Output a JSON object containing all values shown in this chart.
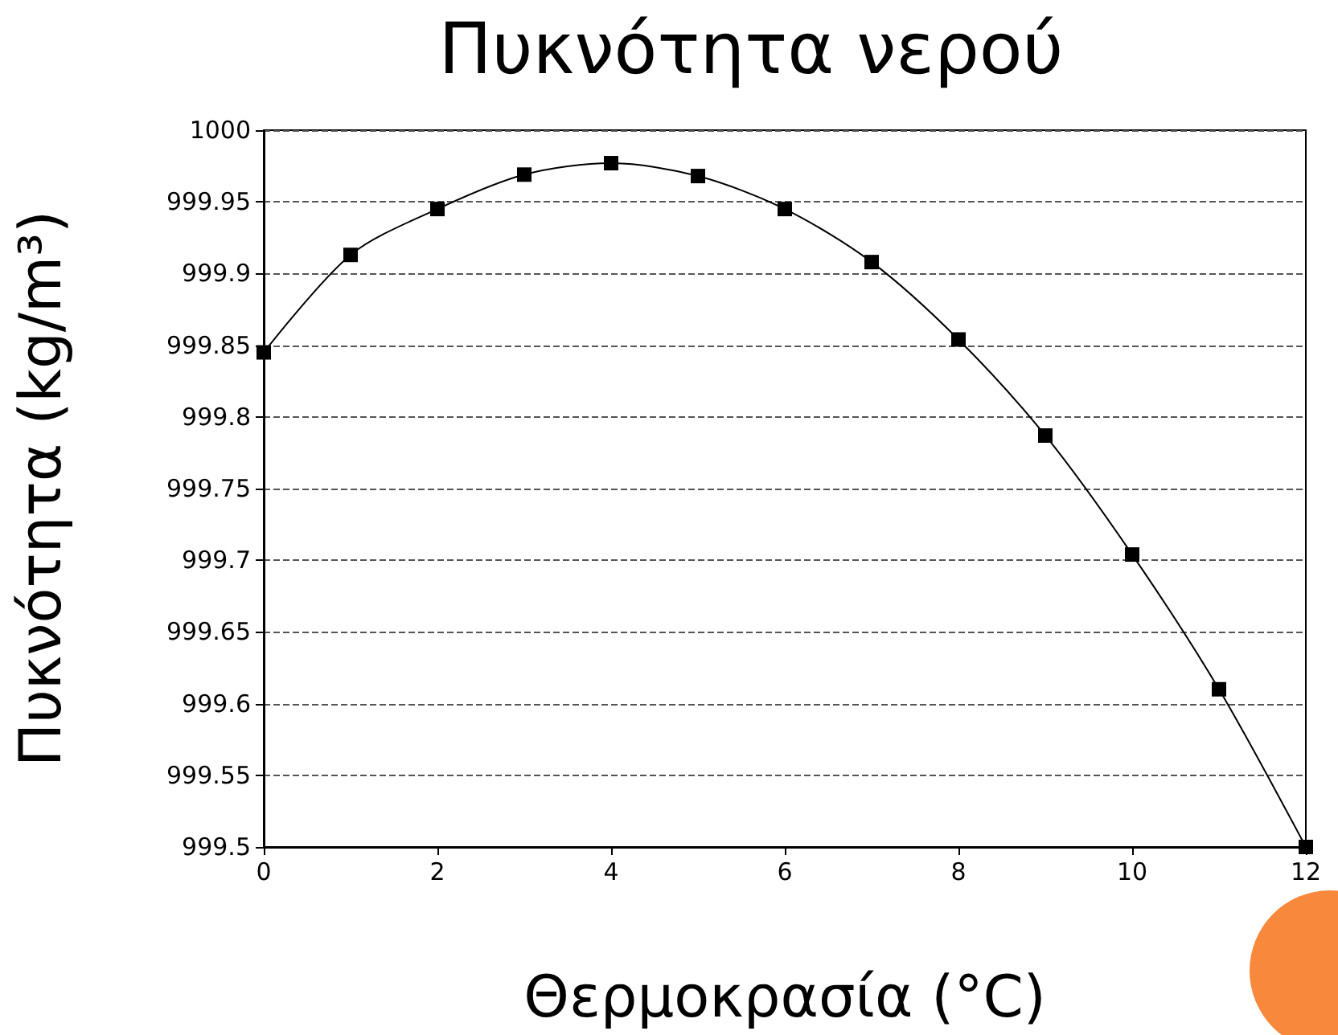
{
  "chart_data": {
    "type": "line",
    "title": "Πυκνότητα νερού",
    "xlabel": "Θερμοκρασία (°C)",
    "ylabel": "Πυκνότητα (kg/m³)",
    "x": [
      0,
      1,
      2,
      3,
      4,
      5,
      6,
      7,
      8,
      9,
      10,
      11,
      12
    ],
    "series": [
      {
        "color": "#000000",
        "values": [
          999.845,
          999.913,
          999.945,
          999.969,
          999.977,
          999.968,
          999.945,
          999.908,
          999.854,
          999.787,
          999.704,
          999.61,
          999.5
        ]
      }
    ],
    "xlim": [
      0,
      12
    ],
    "xticks": [
      0,
      2,
      4,
      6,
      8,
      10,
      12
    ],
    "ylim": [
      999.5,
      1000
    ],
    "yticks": [
      999.5,
      999.55,
      999.6,
      999.65,
      999.7,
      999.75,
      999.8,
      999.85,
      999.9,
      999.95,
      1000
    ],
    "grid": "y",
    "marker": "square",
    "line_style": "solid"
  }
}
